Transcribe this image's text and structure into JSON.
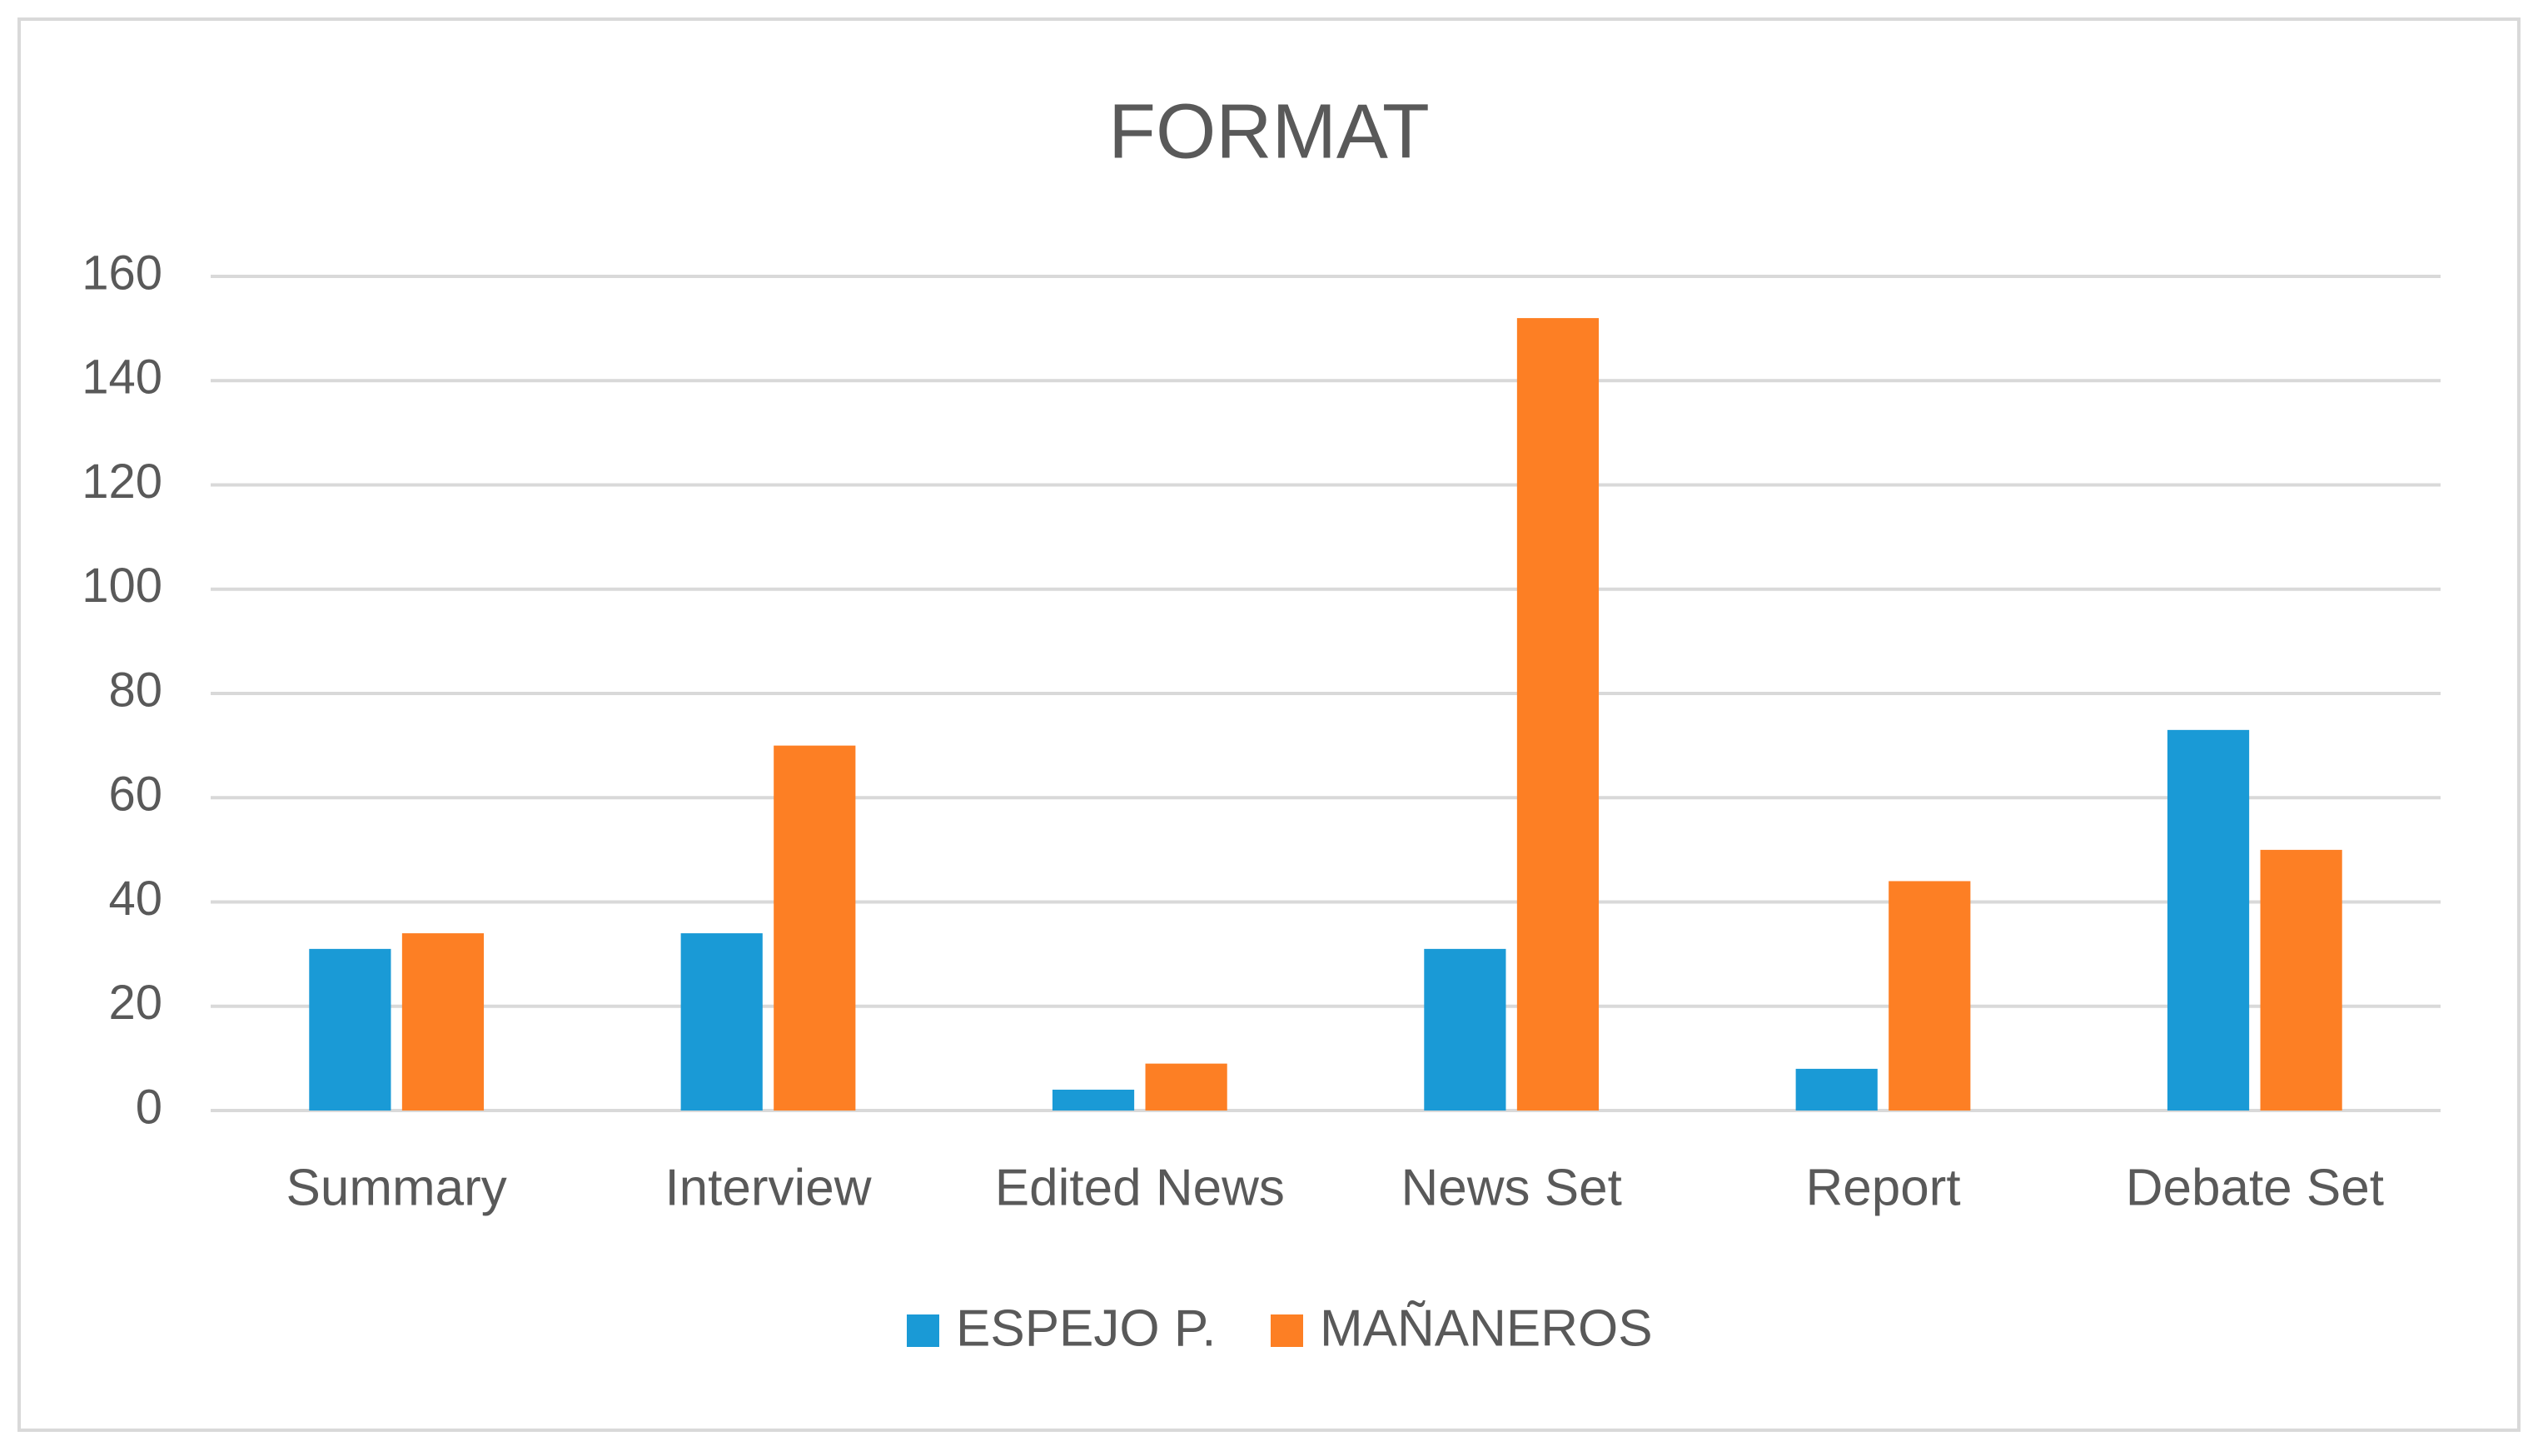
{
  "chart_data": {
    "type": "bar",
    "title": "FORMAT",
    "categories": [
      "Summary",
      "Interview",
      "Edited News",
      "News Set",
      "Report",
      "Debate Set"
    ],
    "series": [
      {
        "name": "ESPEJO P.",
        "color": "#1a9ad6",
        "values": [
          31,
          34,
          4,
          31,
          8,
          73
        ]
      },
      {
        "name": "MAÑANEROS",
        "color": "#fd7f24",
        "values": [
          34,
          70,
          9,
          152,
          44,
          50
        ]
      }
    ],
    "ylim": [
      0,
      160
    ],
    "yticks": [
      0,
      20,
      40,
      60,
      80,
      100,
      120,
      140,
      160
    ],
    "grid": true,
    "legend": "bottom"
  }
}
